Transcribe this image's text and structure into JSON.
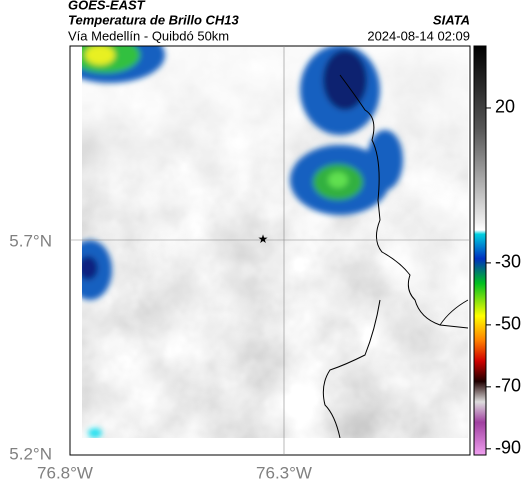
{
  "header": {
    "satellite": "GOES-EAST",
    "product": "Temperatura de Brillo CH13",
    "route": "Vía Medellín - Quibdó 50km",
    "source": "SIATA",
    "datetime": "2024-08-14 02:09"
  },
  "map": {
    "lat_labels": [
      "5.7°N",
      "5.2°N"
    ],
    "lon_labels": [
      "76.8°W",
      "76.3°W"
    ]
  },
  "colorbar": {
    "lim": [
      -92,
      40
    ],
    "ticks": [
      20,
      -30,
      -50,
      -70,
      -90
    ]
  }
}
